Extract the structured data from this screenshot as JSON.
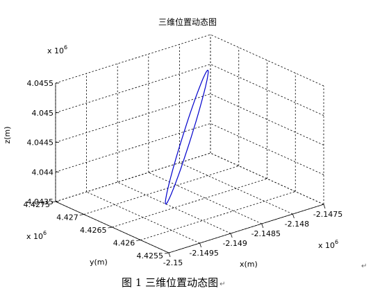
{
  "figure": {
    "caption": "图 1 三维位置动态图",
    "return_mark": "↵"
  },
  "chart_data": {
    "type": "line",
    "title": "三维位置动态图",
    "xlabel": "x(m)",
    "ylabel": "y(m)",
    "zlabel": "z(m)",
    "x_ticks": [
      "-2.15",
      "-2.1495",
      "-2.149",
      "-2.1485",
      "-2.148",
      "-2.1475"
    ],
    "y_ticks": [
      "4.4255",
      "4.426",
      "4.4265",
      "4.427",
      "4.4275"
    ],
    "z_ticks": [
      "4.0435",
      "4.044",
      "4.0445",
      "4.045",
      "4.0455"
    ],
    "x_exponent": "x 10",
    "y_exponent": "x 10",
    "z_exponent": "x 10",
    "exponent_power": "6",
    "xlim": [
      -2150000,
      -2147500
    ],
    "ylim": [
      4425500,
      4427500
    ],
    "zlim": [
      4043500,
      4045500
    ],
    "grid": true,
    "line_color": "#0000cc",
    "trajectory": {
      "start": [
        -2149500,
        4426100,
        4043900
      ],
      "end": [
        -2148000,
        4427000,
        4045280
      ],
      "half_width_x": 70,
      "half_width_z": 25
    }
  }
}
